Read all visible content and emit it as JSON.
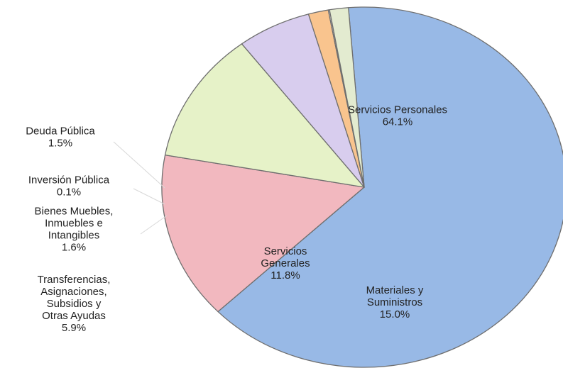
{
  "chart_data": {
    "type": "pie",
    "title": "",
    "slices": [
      {
        "name": "Servicios Personales",
        "label_lines": [
          "Servicios Personales"
        ],
        "value": 64.1,
        "value_label": "64.1%",
        "color": "#98b9e6"
      },
      {
        "name": "Materiales y Suministros",
        "label_lines": [
          "Materiales y",
          "Suministros"
        ],
        "value": 15.0,
        "value_label": "15.0%",
        "color": "#f2b8bf"
      },
      {
        "name": "Servicios Generales",
        "label_lines": [
          "Servicios",
          "Generales"
        ],
        "value": 11.8,
        "value_label": "11.8%",
        "color": "#e6f2c8"
      },
      {
        "name": "Transferencias, Asignaciones, Subsidios y Otras Ayudas",
        "label_lines": [
          "Transferencias,",
          "Asignaciones,",
          "Subsidios y",
          "Otras Ayudas"
        ],
        "value": 5.9,
        "value_label": "5.9%",
        "color": "#d8cdee"
      },
      {
        "name": "Bienes Muebles, Inmuebles e Intangibles",
        "label_lines": [
          "Bienes Muebles,",
          "Inmuebles e",
          "Intangibles"
        ],
        "value": 1.6,
        "value_label": "1.6%",
        "color": "#f9c48e"
      },
      {
        "name": "Inversión Pública",
        "label_lines": [
          "Inversión Pública"
        ],
        "value": 0.1,
        "value_label": "0.1%",
        "color": "#e8e8e8"
      },
      {
        "name": "Deuda Pública",
        "label_lines": [
          "Deuda Pública"
        ],
        "value": 1.5,
        "value_label": "1.5%",
        "color": "#e3ebd0"
      }
    ]
  }
}
